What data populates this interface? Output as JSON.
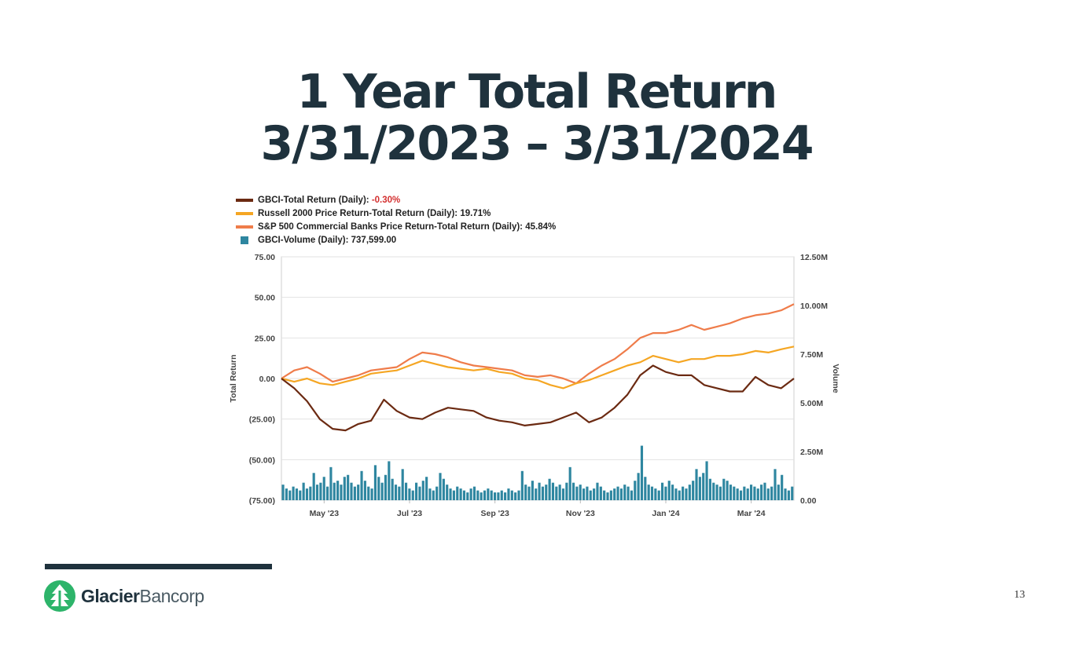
{
  "slide": {
    "title_line1": "1 Year Total Return",
    "title_line2": "3/31/2023 – 3/31/2024",
    "page_number": "13"
  },
  "brand": {
    "name_bold": "Glacier",
    "name_light": "Bancorp",
    "logo_color": "#2db46a",
    "rule_color": "#1f323d"
  },
  "legend": [
    {
      "label": "GBCI-Total Return (Daily): ",
      "value": "-0.30%",
      "color": "#6b2a12",
      "negative": true,
      "kind": "line"
    },
    {
      "label": "Russell 2000 Price Return-Total Return (Daily): ",
      "value": "19.71%",
      "color": "#f5a623",
      "negative": false,
      "kind": "line"
    },
    {
      "label": "S&P 500 Commercial Banks Price Return-Total Return (Daily): ",
      "value": "45.84%",
      "color": "#ef7c4a",
      "negative": false,
      "kind": "line"
    },
    {
      "label": "GBCI-Volume (Daily): ",
      "value": "737,599.00",
      "color": "#2e86a0",
      "negative": false,
      "kind": "bar"
    }
  ],
  "chart_data": {
    "type": "line",
    "ylabel": "Total Return",
    "y2label": "Volume",
    "ylim": [
      -75,
      75
    ],
    "y2lim": [
      0,
      12.5
    ],
    "y_ticks": [
      "75.00",
      "50.00",
      "25.00",
      "0.00",
      "(25.00)",
      "(50.00)",
      "(75.00)"
    ],
    "y2_ticks": [
      "12.50M",
      "10.00M",
      "7.50M",
      "5.00M",
      "2.50M",
      "0.00"
    ],
    "x_ticks": [
      "May '23",
      "Jul '23",
      "Sep '23",
      "Nov '23",
      "Jan '24",
      "Mar '24"
    ],
    "x_tick_positions": [
      1,
      3,
      5,
      7,
      9,
      11
    ],
    "xlim": [
      0,
      12
    ],
    "grid": true,
    "series": [
      {
        "name": "GBCI-Total Return (Daily)",
        "color": "#6b2a12",
        "x": [
          0,
          0.3,
          0.6,
          0.9,
          1.2,
          1.5,
          1.8,
          2.1,
          2.4,
          2.7,
          3.0,
          3.3,
          3.6,
          3.9,
          4.2,
          4.5,
          4.8,
          5.1,
          5.4,
          5.7,
          6.0,
          6.3,
          6.6,
          6.9,
          7.2,
          7.5,
          7.8,
          8.1,
          8.4,
          8.7,
          9.0,
          9.3,
          9.6,
          9.9,
          10.2,
          10.5,
          10.8,
          11.1,
          11.4,
          11.7,
          12.0
        ],
        "y": [
          0,
          -6,
          -14,
          -25,
          -31,
          -32,
          -28,
          -26,
          -13,
          -20,
          -24,
          -25,
          -21,
          -18,
          -19,
          -20,
          -24,
          -26,
          -27,
          -29,
          -28,
          -27,
          -24,
          -21,
          -27,
          -24,
          -18,
          -10,
          2,
          8,
          4,
          2,
          2,
          -4,
          -6,
          -8,
          -8,
          1,
          -4,
          -6,
          0
        ]
      },
      {
        "name": "Russell 2000 Price Return-Total Return (Daily)",
        "color": "#f5a623",
        "x": [
          0,
          0.3,
          0.6,
          0.9,
          1.2,
          1.5,
          1.8,
          2.1,
          2.4,
          2.7,
          3.0,
          3.3,
          3.6,
          3.9,
          4.2,
          4.5,
          4.8,
          5.1,
          5.4,
          5.7,
          6.0,
          6.3,
          6.6,
          6.9,
          7.2,
          7.5,
          7.8,
          8.1,
          8.4,
          8.7,
          9.0,
          9.3,
          9.6,
          9.9,
          10.2,
          10.5,
          10.8,
          11.1,
          11.4,
          11.7,
          12.0
        ],
        "y": [
          0,
          -2,
          0,
          -3,
          -4,
          -2,
          0,
          3,
          4,
          5,
          8,
          11,
          9,
          7,
          6,
          5,
          6,
          4,
          3,
          0,
          -1,
          -4,
          -6,
          -3,
          -1,
          2,
          5,
          8,
          10,
          14,
          12,
          10,
          12,
          12,
          14,
          14,
          15,
          17,
          16,
          18,
          19.7
        ]
      },
      {
        "name": "S&P 500 Commercial Banks Price Return-Total Return (Daily)",
        "color": "#ef7c4a",
        "x": [
          0,
          0.3,
          0.6,
          0.9,
          1.2,
          1.5,
          1.8,
          2.1,
          2.4,
          2.7,
          3.0,
          3.3,
          3.6,
          3.9,
          4.2,
          4.5,
          4.8,
          5.1,
          5.4,
          5.7,
          6.0,
          6.3,
          6.6,
          6.9,
          7.2,
          7.5,
          7.8,
          8.1,
          8.4,
          8.7,
          9.0,
          9.3,
          9.6,
          9.9,
          10.2,
          10.5,
          10.8,
          11.1,
          11.4,
          11.7,
          12.0
        ],
        "y": [
          0,
          5,
          7,
          3,
          -2,
          0,
          2,
          5,
          6,
          7,
          12,
          16,
          15,
          13,
          10,
          8,
          7,
          6,
          5,
          2,
          1,
          2,
          0,
          -3,
          3,
          8,
          12,
          18,
          25,
          28,
          28,
          30,
          33,
          30,
          32,
          34,
          37,
          39,
          40,
          42,
          45.8
        ]
      }
    ],
    "volume": {
      "name": "GBCI-Volume (Daily)",
      "color": "#2e86a0",
      "unit": "M",
      "values": [
        0.8,
        0.6,
        0.5,
        0.7,
        0.6,
        0.5,
        0.9,
        0.6,
        0.7,
        1.4,
        0.8,
        0.9,
        1.2,
        0.7,
        1.7,
        0.9,
        1.0,
        0.8,
        1.2,
        1.3,
        0.9,
        0.7,
        0.8,
        1.5,
        1.0,
        0.7,
        0.6,
        1.8,
        1.2,
        0.9,
        1.3,
        2.0,
        1.1,
        0.8,
        0.7,
        1.6,
        0.9,
        0.6,
        0.5,
        0.9,
        0.7,
        1.0,
        1.2,
        0.6,
        0.5,
        0.7,
        1.4,
        1.1,
        0.8,
        0.6,
        0.5,
        0.7,
        0.6,
        0.5,
        0.4,
        0.6,
        0.7,
        0.5,
        0.4,
        0.5,
        0.6,
        0.5,
        0.4,
        0.4,
        0.5,
        0.4,
        0.6,
        0.5,
        0.4,
        0.5,
        1.5,
        0.8,
        0.7,
        1.0,
        0.6,
        0.9,
        0.7,
        0.8,
        1.1,
        0.9,
        0.7,
        0.8,
        0.6,
        0.9,
        1.7,
        0.9,
        0.7,
        0.8,
        0.6,
        0.7,
        0.5,
        0.6,
        0.9,
        0.7,
        0.5,
        0.4,
        0.5,
        0.6,
        0.7,
        0.6,
        0.8,
        0.7,
        0.5,
        1.0,
        1.4,
        2.8,
        1.2,
        0.8,
        0.7,
        0.6,
        0.5,
        0.9,
        0.7,
        1.0,
        0.8,
        0.6,
        0.5,
        0.7,
        0.6,
        0.8,
        1.0,
        1.6,
        1.2,
        1.4,
        2.0,
        1.1,
        0.9,
        0.8,
        0.7,
        1.1,
        1.0,
        0.8,
        0.7,
        0.6,
        0.5,
        0.7,
        0.6,
        0.8,
        0.7,
        0.6,
        0.8,
        0.9,
        0.6,
        0.7,
        1.6,
        0.8,
        1.3,
        0.6,
        0.5,
        0.7
      ]
    }
  }
}
